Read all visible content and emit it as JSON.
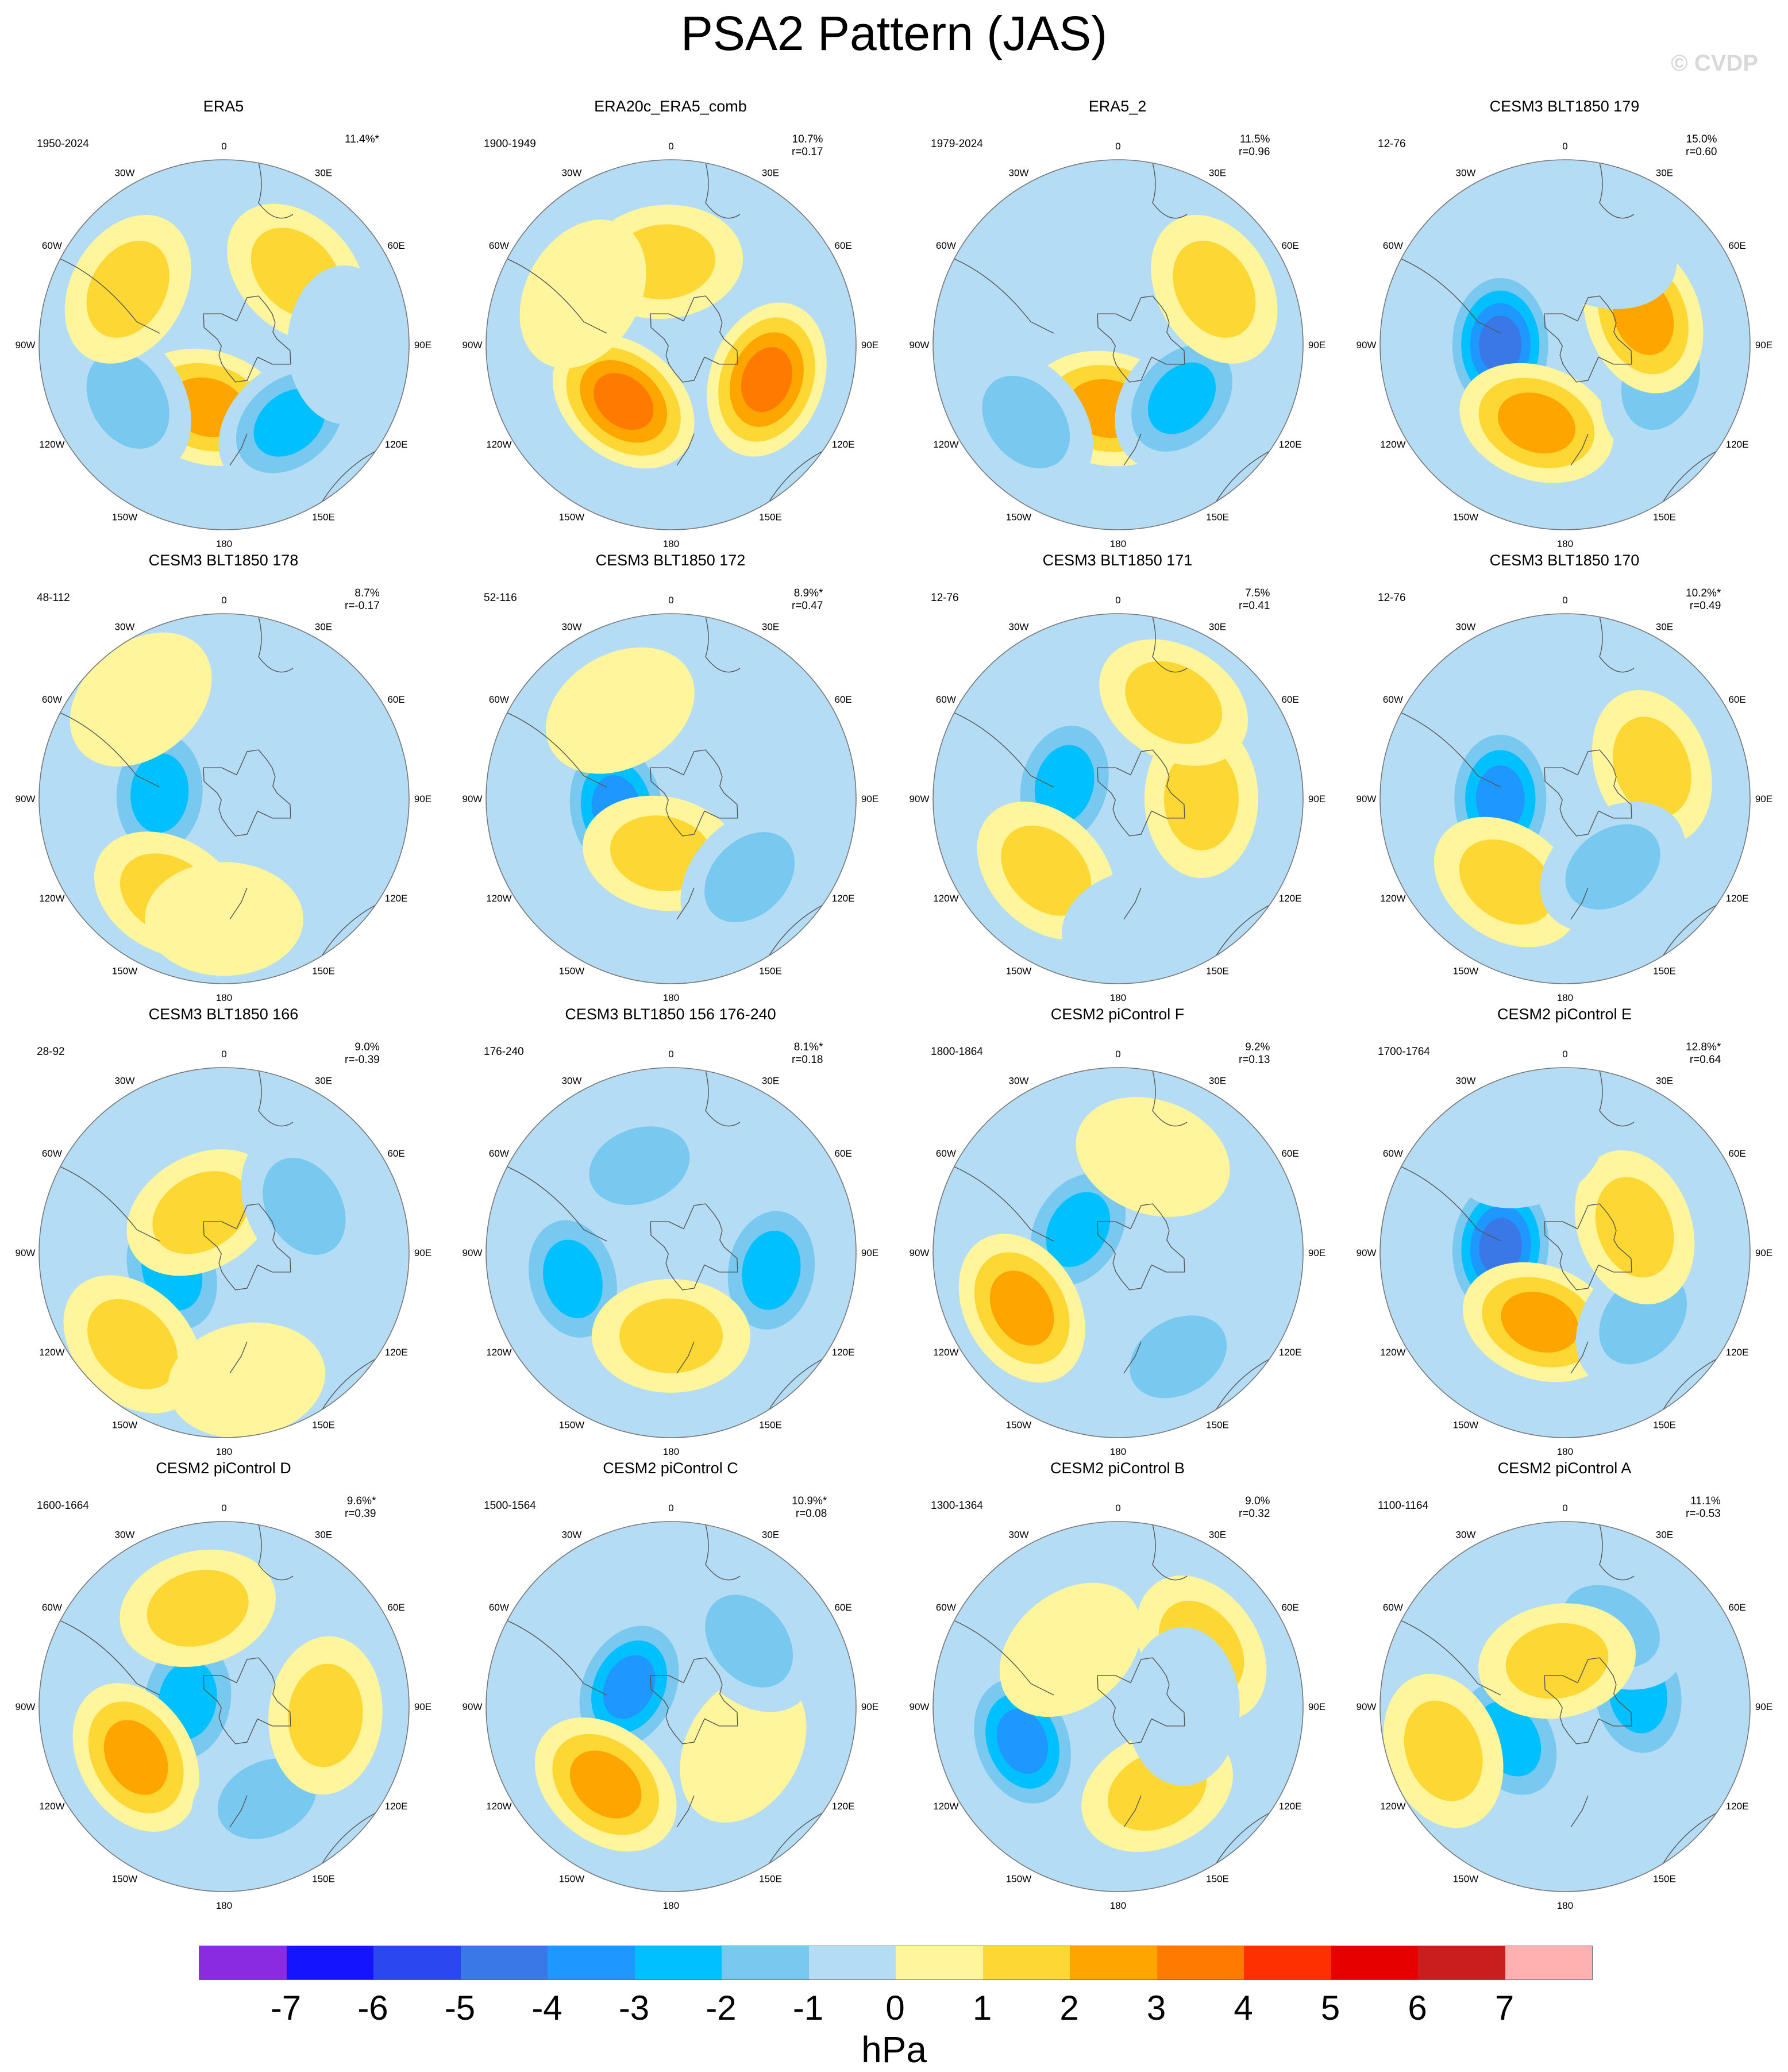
{
  "title": "PSA2 Pattern (JAS)",
  "credit": "© CVDP",
  "longitude_labels": [
    "0",
    "30E",
    "60E",
    "90E",
    "120E",
    "150E",
    "180",
    "150W",
    "120W",
    "90W",
    "60W",
    "30W"
  ],
  "panels": [
    {
      "title": "ERA5",
      "period": "1950-2024",
      "pct": "11.4%*",
      "r": "",
      "blobs": [
        {
          "lon": 195,
          "r": 0.35,
          "v": 3
        },
        {
          "lon": 140,
          "r": 0.55,
          "v": -2.5
        },
        {
          "lon": 240,
          "r": 0.6,
          "v": -1.5
        },
        {
          "lon": 45,
          "r": 0.55,
          "v": 1.5
        },
        {
          "lon": 300,
          "r": 0.6,
          "v": 1.5
        },
        {
          "lon": 90,
          "r": 0.65,
          "v": -1
        }
      ]
    },
    {
      "title": "ERA20c_ERA5_comb",
      "period": "1900-1949",
      "pct": "10.7%",
      "r": "r=0.17",
      "blobs": [
        {
          "lon": 220,
          "r": 0.4,
          "v": 3.5
        },
        {
          "lon": 110,
          "r": 0.55,
          "v": 4
        },
        {
          "lon": 355,
          "r": 0.45,
          "v": 1.5
        },
        {
          "lon": 300,
          "r": 0.55,
          "v": 1
        }
      ]
    },
    {
      "title": "ERA5_2",
      "period": "1979-2024",
      "pct": "11.5%",
      "r": "r=0.96",
      "blobs": [
        {
          "lon": 190,
          "r": 0.35,
          "v": 3
        },
        {
          "lon": 130,
          "r": 0.45,
          "v": -2.5
        },
        {
          "lon": 230,
          "r": 0.65,
          "v": -1.5
        },
        {
          "lon": 60,
          "r": 0.6,
          "v": 1.5
        },
        {
          "lon": 300,
          "r": 0.65,
          "v": -1
        }
      ]
    },
    {
      "title": "CESM3 BLT1850 179",
      "period": "12-76",
      "pct": "15.0%",
      "r": "r=0.60",
      "blobs": [
        {
          "lon": 270,
          "r": 0.35,
          "v": -4.5
        },
        {
          "lon": 200,
          "r": 0.45,
          "v": 2.5
        },
        {
          "lon": 110,
          "r": 0.55,
          "v": -2
        },
        {
          "lon": 70,
          "r": 0.45,
          "v": 2.5
        },
        {
          "lon": 20,
          "r": 0.55,
          "v": -1
        }
      ]
    },
    {
      "title": "CESM3 BLT1850 178",
      "period": "48-112",
      "pct": "8.7%",
      "r": "r=-0.17",
      "blobs": [
        {
          "lon": 275,
          "r": 0.35,
          "v": -2.5
        },
        {
          "lon": 210,
          "r": 0.6,
          "v": 2
        },
        {
          "lon": 180,
          "r": 0.65,
          "v": 1
        },
        {
          "lon": 100,
          "r": 0.6,
          "v": -1
        },
        {
          "lon": 320,
          "r": 0.7,
          "v": 1
        }
      ]
    },
    {
      "title": "CESM3 BLT1850 172",
      "period": "52-116",
      "pct": "8.9%*",
      "r": "r=0.47",
      "blobs": [
        {
          "lon": 260,
          "r": 0.3,
          "v": -3.5
        },
        {
          "lon": 190,
          "r": 0.3,
          "v": 1.5
        },
        {
          "lon": 135,
          "r": 0.6,
          "v": -1.5
        },
        {
          "lon": 330,
          "r": 0.55,
          "v": 1
        }
      ]
    },
    {
      "title": "CESM3 BLT1850 171",
      "period": "12-76",
      "pct": "7.5%",
      "r": "r=0.41",
      "blobs": [
        {
          "lon": 285,
          "r": 0.3,
          "v": -2.5
        },
        {
          "lon": 225,
          "r": 0.55,
          "v": 2
        },
        {
          "lon": 90,
          "r": 0.45,
          "v": 1.5
        },
        {
          "lon": 30,
          "r": 0.6,
          "v": 1.5
        },
        {
          "lon": 170,
          "r": 0.7,
          "v": -1
        }
      ]
    },
    {
      "title": "CESM3 BLT1850 170",
      "period": "12-76",
      "pct": "10.2%*",
      "r": "r=0.49",
      "blobs": [
        {
          "lon": 270,
          "r": 0.35,
          "v": -3.5
        },
        {
          "lon": 215,
          "r": 0.55,
          "v": 1.5
        },
        {
          "lon": 70,
          "r": 0.5,
          "v": 1.5
        },
        {
          "lon": 145,
          "r": 0.45,
          "v": -1.5
        }
      ]
    },
    {
      "title": "CESM3 BLT1850 166",
      "period": "28-92",
      "pct": "9.0%",
      "r": "r=-0.39",
      "blobs": [
        {
          "lon": 250,
          "r": 0.3,
          "v": -2.5
        },
        {
          "lon": 225,
          "r": 0.7,
          "v": 1.5
        },
        {
          "lon": 330,
          "r": 0.25,
          "v": 2
        },
        {
          "lon": 60,
          "r": 0.5,
          "v": -1.5
        },
        {
          "lon": 170,
          "r": 0.7,
          "v": 1
        }
      ]
    },
    {
      "title": "CESM3 BLT1850 156 176-240",
      "period": "176-240",
      "pct": "8.1%*",
      "r": "r=0.18",
      "blobs": [
        {
          "lon": 255,
          "r": 0.55,
          "v": -2.5
        },
        {
          "lon": 100,
          "r": 0.55,
          "v": -2.5
        },
        {
          "lon": 180,
          "r": 0.45,
          "v": 1.5
        },
        {
          "lon": 340,
          "r": 0.5,
          "v": -1.5
        }
      ]
    },
    {
      "title": "CESM2 piControl F",
      "period": "1800-1864",
      "pct": "9.2%",
      "r": "r=0.13",
      "blobs": [
        {
          "lon": 300,
          "r": 0.25,
          "v": -2.5
        },
        {
          "lon": 240,
          "r": 0.6,
          "v": 2.5
        },
        {
          "lon": 150,
          "r": 0.65,
          "v": -1.5
        },
        {
          "lon": 20,
          "r": 0.55,
          "v": 1
        }
      ]
    },
    {
      "title": "CESM2 piControl E",
      "period": "1700-1764",
      "pct": "12.8%*",
      "r": "r=0.64",
      "blobs": [
        {
          "lon": 275,
          "r": 0.35,
          "v": -4.5
        },
        {
          "lon": 200,
          "r": 0.4,
          "v": 2.5
        },
        {
          "lon": 130,
          "r": 0.55,
          "v": -2
        },
        {
          "lon": 70,
          "r": 0.4,
          "v": 2
        },
        {
          "lon": 340,
          "r": 0.6,
          "v": -1
        }
      ]
    },
    {
      "title": "CESM2 piControl D",
      "period": "1600-1664",
      "pct": "9.6%*",
      "r": "r=0.39",
      "blobs": [
        {
          "lon": 280,
          "r": 0.2,
          "v": -3
        },
        {
          "lon": 240,
          "r": 0.55,
          "v": 2.5
        },
        {
          "lon": 155,
          "r": 0.55,
          "v": -1.5
        },
        {
          "lon": 95,
          "r": 0.55,
          "v": 1.5
        },
        {
          "lon": 345,
          "r": 0.55,
          "v": 1.5
        }
      ]
    },
    {
      "title": "CESM2 piControl C",
      "period": "1500-1564",
      "pct": "10.9%*",
      "r": "r=0.08",
      "blobs": [
        {
          "lon": 295,
          "r": 0.25,
          "v": -3.5
        },
        {
          "lon": 220,
          "r": 0.55,
          "v": 3
        },
        {
          "lon": 120,
          "r": 0.45,
          "v": 1
        },
        {
          "lon": 50,
          "r": 0.55,
          "v": -1.5
        }
      ]
    },
    {
      "title": "CESM2 piControl B",
      "period": "1300-1364",
      "pct": "9.0%",
      "r": "r=0.32",
      "blobs": [
        {
          "lon": 250,
          "r": 0.55,
          "v": -3.5
        },
        {
          "lon": 155,
          "r": 0.5,
          "v": 2
        },
        {
          "lon": 55,
          "r": 0.55,
          "v": 1.5
        },
        {
          "lon": 320,
          "r": 0.4,
          "v": 1
        },
        {
          "lon": 90,
          "r": 0.35,
          "v": -1
        }
      ]
    },
    {
      "title": "CESM2 piControl A",
      "period": "1100-1164",
      "pct": "11.1%",
      "r": "r=-0.53",
      "blobs": [
        {
          "lon": 240,
          "r": 0.35,
          "v": -3
        },
        {
          "lon": 80,
          "r": 0.4,
          "v": -2.5
        },
        {
          "lon": 30,
          "r": 0.5,
          "v": -1.5
        },
        {
          "lon": 250,
          "r": 0.7,
          "v": 2
        },
        {
          "lon": 350,
          "r": 0.25,
          "v": 1.5
        }
      ]
    }
  ],
  "colorbar": {
    "labels": [
      "-7",
      "-6",
      "-5",
      "-4",
      "-3",
      "-2",
      "-1",
      "0",
      "1",
      "2",
      "3",
      "4",
      "5",
      "6",
      "7"
    ],
    "colors": [
      "#8a2be2",
      "#1414ff",
      "#2b48f0",
      "#3a78e8",
      "#1e98ff",
      "#00c0ff",
      "#78c8f0",
      "#b4dcf4",
      "#fff59c",
      "#fdd835",
      "#ffa500",
      "#ff7a00",
      "#ff3000",
      "#e60000",
      "#c81e1e",
      "#ffb0b0"
    ],
    "units": "hPa"
  }
}
